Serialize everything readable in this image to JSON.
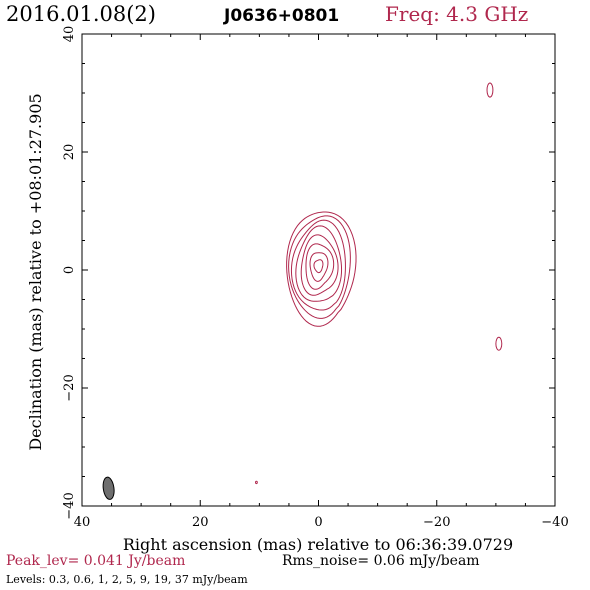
{
  "header": {
    "date": "2016.01.08(2)",
    "source": "J0636+0801",
    "freq": "Freq: 4.3 GHz"
  },
  "footer": {
    "peak": "Peak_lev=  0.041 Jy/beam",
    "rms": "Rms_noise= 0.06 mJy/beam",
    "levels": "Levels: 0.3, 0.6,   1,   2,   5,   9,  19,  37 mJy/beam"
  },
  "colors": {
    "contour": "#b0274d",
    "beam": "#6e6e6e",
    "axis": "#000000"
  },
  "chart_data": {
    "type": "contour",
    "xlabel": "Right ascension (mas) relative to 06:36:39.0729",
    "ylabel": "Declination (mas) relative to +08:01:27.905",
    "xlim": [
      40,
      -40
    ],
    "ylim": [
      -40,
      40
    ],
    "xticks": [
      40,
      20,
      0,
      -20,
      -40
    ],
    "yticks": [
      -40,
      -20,
      0,
      20,
      40
    ],
    "xtick_labels": [
      "40",
      "20",
      "0",
      "−20",
      "−40"
    ],
    "ytick_labels": [
      "−40",
      "−20",
      "0",
      "20",
      "40"
    ],
    "levels_mJy": [
      0.3,
      0.6,
      1,
      2,
      5,
      9,
      19,
      37
    ],
    "core": {
      "x": 0,
      "y": 0.5,
      "contours": [
        {
          "rx": 5.5,
          "ry": 10.0,
          "dx": -0.3,
          "dy": 0.0
        },
        {
          "rx": 4.9,
          "ry": 8.9,
          "dx": -0.2,
          "dy": 0.1
        },
        {
          "rx": 4.3,
          "ry": 7.8,
          "dx": -0.1,
          "dy": 0.1
        },
        {
          "rx": 3.6,
          "ry": 6.6,
          "dx": 0.0,
          "dy": 0.2
        },
        {
          "rx": 2.9,
          "ry": 5.2,
          "dx": 0.0,
          "dy": 0.2
        },
        {
          "rx": 2.2,
          "ry": 3.9,
          "dx": 0.0,
          "dy": 0.2
        },
        {
          "rx": 1.4,
          "ry": 2.5,
          "dx": 0.0,
          "dy": 0.2
        },
        {
          "rx": 0.7,
          "ry": 1.1,
          "dx": 0.0,
          "dy": 0.2
        }
      ]
    },
    "noise_components": [
      {
        "x": -29.0,
        "y": 30.5,
        "rx": 0.5,
        "ry": 1.2
      },
      {
        "x": -30.5,
        "y": -12.5,
        "rx": 0.5,
        "ry": 1.1
      },
      {
        "x": 10.5,
        "y": -36.0,
        "rx": 0.15,
        "ry": 0.2
      }
    ],
    "beam": {
      "x": 35.5,
      "y": -37.0,
      "rx": 0.9,
      "ry": 1.9,
      "angle_deg": -8
    }
  }
}
